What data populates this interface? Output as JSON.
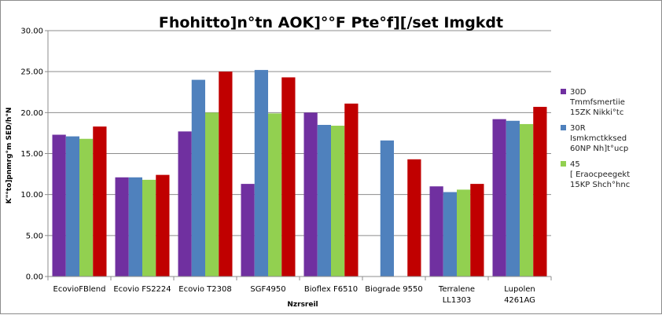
{
  "chart_data": {
    "type": "bar",
    "title": "Fhohitto]n°tn AOK]°°F Pte°f][/set Imgkdt",
    "xlabel": "Nzrsreil",
    "ylabel": "K\"°to]pnmrg°m  SED/h°N",
    "ylim": [
      0,
      30
    ],
    "yticks": [
      "0.00",
      "5.00",
      "10.00",
      "15.00",
      "20.00",
      "25.00",
      "30.00"
    ],
    "grid": true,
    "legend_position": "right",
    "categories": [
      [
        "EcovioFBlend"
      ],
      [
        "Ecovio FS2224"
      ],
      [
        "Ecovio T2308"
      ],
      [
        "SGF4950"
      ],
      [
        "Bioflex F6510"
      ],
      [
        "Biograde 9550"
      ],
      [
        "Terralene",
        "LL1303"
      ],
      [
        "Lupolen",
        "4261AG"
      ]
    ],
    "series": [
      {
        "name_lines": [
          "30D",
          "Tmmfsmertiie",
          "15ZK Nikki°tc"
        ],
        "color": "#7030a0",
        "values": [
          17.3,
          12.1,
          17.7,
          11.3,
          20.0,
          null,
          11.0,
          19.2
        ]
      },
      {
        "name_lines": [
          "30R",
          "Ismkmctkksed",
          "60NP Nh]t°ucp"
        ],
        "color": "#4f81bd",
        "values": [
          17.1,
          12.1,
          24.0,
          25.2,
          18.5,
          16.6,
          10.3,
          19.0
        ]
      },
      {
        "name_lines": [
          "45",
          "[ Eraocpeegekt",
          "15KP Shch°hnc"
        ],
        "color": "#92d050",
        "values": [
          16.8,
          11.8,
          20.0,
          19.9,
          18.4,
          null,
          10.6,
          18.6
        ]
      },
      {
        "name_lines": [],
        "color": "#c00000",
        "values": [
          18.3,
          12.4,
          25.0,
          24.3,
          21.1,
          14.3,
          11.3,
          20.7
        ]
      }
    ]
  }
}
